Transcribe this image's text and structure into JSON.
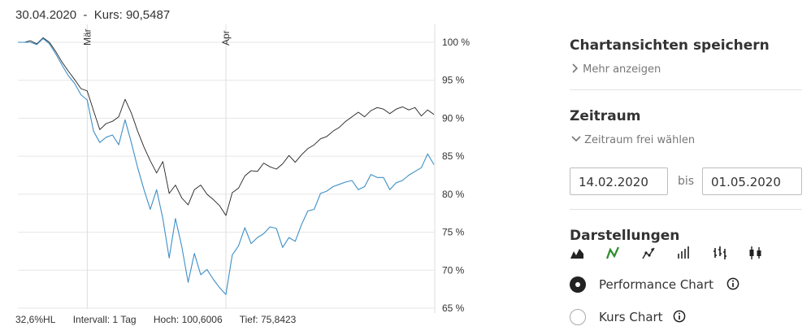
{
  "header": {
    "date": "30.04.2020",
    "separator": "-",
    "price": "Kurs: 90,5487"
  },
  "footer": {
    "range": "32,6%HL",
    "interval": "Intervall: 1 Tag",
    "high": "Hoch: 100,6006",
    "low": "Tief: 75,8423"
  },
  "sidebar": {
    "saved_views": {
      "title": "Chartansichten speichern",
      "more": "Mehr anzeigen"
    },
    "timeframe": {
      "title": "Zeitraum",
      "custom": "Zeitraum frei wählen",
      "from": "14.02.2020",
      "to_label": "bis",
      "to": "01.05.2020"
    },
    "display": {
      "title": "Darstellungen",
      "icons": [
        "mountain-chart-icon",
        "line-chart-icon",
        "dot-line-chart-icon",
        "bar-chart-icon",
        "ohlc-chart-icon",
        "candlestick-chart-icon"
      ],
      "selected_icon": 1,
      "options": [
        {
          "label": "Performance Chart",
          "selected": true
        },
        {
          "label": "Kurs Chart",
          "selected": false
        }
      ]
    }
  },
  "colors": {
    "accent_green": "#2e8b2e",
    "blue_line": "#3d8fc6",
    "black_line": "#222222",
    "grid": "#e6e6e6"
  },
  "chart_data": {
    "type": "line",
    "y_axis_labels": [
      "100 %",
      "95 %",
      "90 %",
      "85 %",
      "80 %",
      "75 %",
      "70 %",
      "65 %"
    ],
    "ylim": [
      64.5,
      101.5
    ],
    "month_labels": [
      {
        "label": "Mär",
        "index": 11
      },
      {
        "label": "Apr",
        "index": 33
      }
    ],
    "grid": true,
    "series": [
      {
        "color": "#222222",
        "values": [
          100,
          100,
          100.2,
          99.8,
          100.6,
          100,
          98.8,
          97.4,
          96.2,
          95.1,
          93.9,
          93.6,
          91,
          88.5,
          89.3,
          89.6,
          90.2,
          92.5,
          90.7,
          88.3,
          86.2,
          84.4,
          82.8,
          84.3,
          80.1,
          81.2,
          79.5,
          78.6,
          80.6,
          81.2,
          80,
          79.3,
          78.5,
          77.2,
          80.2,
          80.8,
          82.4,
          83.1,
          83,
          84.1,
          83.6,
          83.3,
          84,
          85.1,
          84.2,
          85.2,
          86,
          86.5,
          87.3,
          87.6,
          88.3,
          88.8,
          89.6,
          90.2,
          90.8,
          90.2,
          91,
          91.4,
          91.2,
          90.6,
          91.2,
          91.5,
          91.1,
          91.4,
          90.3,
          91.1,
          90.5
        ]
      },
      {
        "color": "#3d8fc6",
        "values": [
          100,
          100,
          100,
          99.7,
          100.5,
          99.8,
          98.5,
          97,
          95.6,
          94.6,
          93.1,
          92.4,
          88.3,
          86.8,
          87.5,
          87.8,
          86.5,
          89.8,
          86.8,
          83.5,
          80.6,
          78,
          80.6,
          76.8,
          71.6,
          76.8,
          73.1,
          68.4,
          72.2,
          69.4,
          70.1,
          68.8,
          67.7,
          66.8,
          72,
          73.2,
          75.6,
          73.5,
          74.3,
          74.8,
          75.7,
          75.5,
          73,
          74.3,
          73.8,
          76,
          77.8,
          78,
          80.1,
          80.4,
          81,
          81.3,
          81.6,
          81.8,
          80.6,
          81,
          82.6,
          82.2,
          82.2,
          80.6,
          81.5,
          81.8,
          82.5,
          83,
          83.5,
          85.3,
          83.9
        ]
      }
    ]
  }
}
